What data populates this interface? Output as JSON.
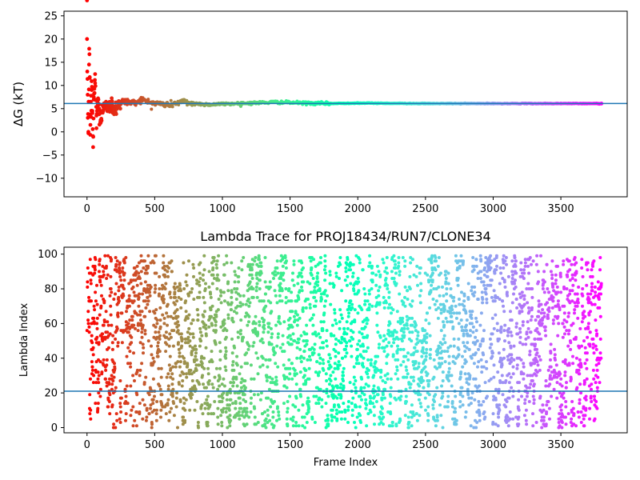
{
  "chart_data": [
    {
      "type": "scatter",
      "title": "",
      "xlabel": "",
      "ylabel": "ΔG (kT)",
      "xlim": [
        -170,
        3990
      ],
      "ylim": [
        -14,
        26
      ],
      "xticks": [
        0,
        500,
        1000,
        1500,
        2000,
        2500,
        3000,
        3500
      ],
      "yticks": [
        -10,
        -5,
        0,
        5,
        10,
        15,
        20,
        25
      ],
      "hline": 6.1,
      "grid": false,
      "colormap": "rainbow",
      "hline_color": "#1f77b4",
      "series": [
        {
          "x": [
            0,
            5,
            10,
            15,
            20,
            25,
            30,
            35,
            40,
            45,
            50,
            60,
            70,
            80,
            90,
            100,
            120,
            140,
            160,
            180,
            200,
            250,
            300,
            350,
            400,
            450,
            500,
            600,
            700,
            800,
            900,
            1000,
            1200,
            1400,
            1600,
            1800,
            2000,
            2500,
            3000,
            3500,
            3800
          ],
          "y": [
            20.0,
            8.0,
            0.0,
            14.5,
            11.8,
            1.5,
            3.2,
            9.0,
            4.5,
            -3.3,
            7.5,
            10.5,
            3.5,
            6.0,
            5.0,
            2.5,
            4.5,
            6.5,
            5.0,
            6.0,
            4.8,
            6.5,
            6.5,
            6.2,
            7.0,
            6.4,
            6.2,
            5.8,
            6.5,
            6.1,
            5.9,
            6.0,
            6.2,
            6.4,
            6.2,
            6.1,
            6.2,
            6.1,
            6.1,
            6.1,
            6.1
          ]
        }
      ]
    },
    {
      "type": "scatter",
      "title": "Lambda Trace for PROJ18434/RUN7/CLONE34",
      "xlabel": "Frame Index",
      "ylabel": "Lambda Index",
      "xlim": [
        -170,
        3990
      ],
      "ylim": [
        -3,
        104
      ],
      "xticks": [
        0,
        500,
        1000,
        1500,
        2000,
        2500,
        3000,
        3500
      ],
      "yticks": [
        0,
        20,
        40,
        60,
        80,
        100
      ],
      "hline": 21,
      "grid": false,
      "colormap": "rainbow",
      "hline_color": "#1f77b4",
      "frames": 3800,
      "lambda_max": 99
    }
  ]
}
